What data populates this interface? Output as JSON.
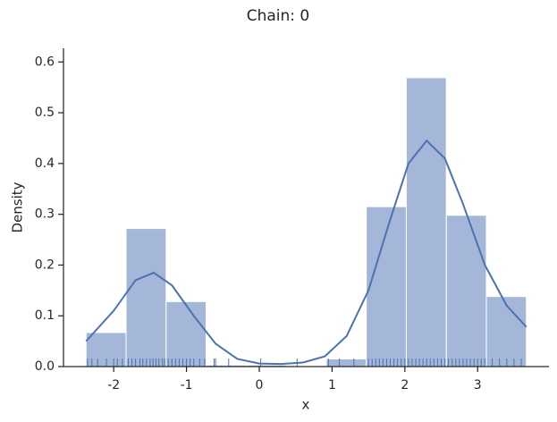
{
  "chart_data": {
    "type": "histogram",
    "title": "Chain: 0",
    "xlabel": "x",
    "ylabel": "Density",
    "bins": [
      -2.38,
      -1.83,
      -1.28,
      -0.73,
      -0.18,
      0.37,
      0.92,
      1.47,
      2.02,
      2.57,
      3.12,
      3.67
    ],
    "values": [
      0.067,
      0.272,
      0.128,
      0.003,
      0.003,
      0,
      0.015,
      0.315,
      0.569,
      0.298,
      0.138
    ],
    "color": "#a4b7d9",
    "kde": {
      "color": "#4c72b0",
      "x": [
        -2.38,
        -2.0,
        -1.7,
        -1.45,
        -1.2,
        -0.9,
        -0.6,
        -0.3,
        0,
        0.3,
        0.6,
        0.9,
        1.2,
        1.5,
        1.8,
        2.05,
        2.3,
        2.55,
        2.8,
        3.1,
        3.4,
        3.67
      ],
      "values": [
        0.05,
        0.11,
        0.17,
        0.185,
        0.16,
        0.1,
        0.045,
        0.015,
        0.006,
        0.005,
        0.008,
        0.02,
        0.06,
        0.15,
        0.29,
        0.4,
        0.445,
        0.41,
        0.32,
        0.2,
        0.12,
        0.078
      ]
    },
    "rug": [
      -2.36,
      -2.3,
      -2.22,
      -2.1,
      -2.0,
      -1.95,
      -1.88,
      -1.8,
      -1.75,
      -1.7,
      -1.64,
      -1.6,
      -1.55,
      -1.5,
      -1.46,
      -1.42,
      -1.38,
      -1.33,
      -1.3,
      -1.25,
      -1.2,
      -1.15,
      -1.1,
      -1.05,
      -1.0,
      -0.95,
      -0.9,
      -0.82,
      -0.75,
      -0.62,
      -0.6,
      -0.42,
      0.02,
      0.52,
      0.95,
      1.1,
      1.3,
      1.5,
      1.55,
      1.6,
      1.65,
      1.7,
      1.75,
      1.8,
      1.85,
      1.9,
      1.95,
      2.0,
      2.05,
      2.1,
      2.15,
      2.2,
      2.25,
      2.3,
      2.35,
      2.4,
      2.45,
      2.5,
      2.55,
      2.6,
      2.65,
      2.7,
      2.75,
      2.8,
      2.85,
      2.9,
      2.95,
      3.0,
      3.05,
      3.1,
      3.2,
      3.3,
      3.4,
      3.5,
      3.6
    ],
    "xlim": [
      -2.69,
      3.98
    ],
    "ylim": [
      0,
      0.627
    ],
    "xticks": [
      -2,
      -1,
      0,
      1,
      2,
      3
    ],
    "yticks": [
      {
        "value": 0,
        "label": "0.0"
      },
      {
        "value": 0.1,
        "label": "0.1"
      },
      {
        "value": 0.2,
        "label": "0.2"
      },
      {
        "value": 0.3,
        "label": "0.3"
      },
      {
        "value": 0.4,
        "label": "0.4"
      },
      {
        "value": 0.5,
        "label": "0.5"
      },
      {
        "value": 0.6,
        "label": "0.6"
      }
    ]
  }
}
